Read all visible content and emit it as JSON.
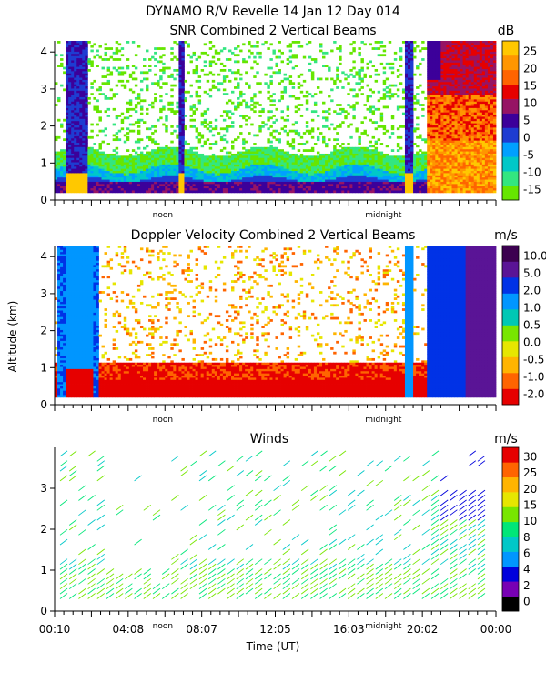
{
  "title_line1": "DYNAMO R/V Revelle  14 Jan 12 Day 014",
  "colors": {
    "dB": [
      "#66e600",
      "#33e680",
      "#00c8c8",
      "#00a0ff",
      "#1e3cd2",
      "#3c009a",
      "#961464",
      "#e60000",
      "#ff6400",
      "#ff9600",
      "#ffc800"
    ],
    "velocity": [
      "#e60000",
      "#ff6400",
      "#ffb400",
      "#e6e600",
      "#78e600",
      "#00c8b4",
      "#0096ff",
      "#0032e6",
      "#5a1496",
      "#3c0050"
    ],
    "winds": [
      "#000000",
      "#7800b4",
      "#0000dc",
      "#0096ff",
      "#00c8c8",
      "#00e678",
      "#78e600",
      "#e6e600",
      "#ffb400",
      "#ff6400",
      "#e60000"
    ]
  },
  "chart_data": [
    {
      "type": "heatmap",
      "title": "SNR Combined 2 Vertical Beams",
      "ylabel": "",
      "ylim": [
        0,
        4.3
      ],
      "yticks": [
        0,
        1,
        2,
        3,
        4
      ],
      "x_markers": [
        "noon",
        "midnight"
      ],
      "colorbar_unit": "dB",
      "colorbar_ticks": [
        "-15",
        "-10",
        "-5",
        "0",
        "5",
        "10",
        "15",
        "20",
        "25"
      ],
      "colorbar_range": [
        -18,
        30
      ]
    },
    {
      "type": "heatmap",
      "title": "Doppler Velocity Combined 2 Vertical Beams",
      "ylabel": "Altitude (km)",
      "ylim": [
        0,
        4.3
      ],
      "yticks": [
        0,
        1,
        2,
        3,
        4
      ],
      "x_markers": [
        "noon",
        "midnight"
      ],
      "colorbar_unit": "m/s",
      "colorbar_ticks": [
        "-2.0",
        "-1.0",
        "-0.5",
        "0.0",
        "0.5",
        "1.0",
        "2.0",
        "5.0",
        "10.0"
      ]
    },
    {
      "type": "scatter",
      "title": "Winds",
      "ylabel": "",
      "xlabel": "Time (UT)",
      "ylim": [
        0,
        4.0
      ],
      "yticks": [
        0,
        1,
        2,
        3
      ],
      "xticks": [
        "00:10",
        "04:08",
        "08:07",
        "12:05",
        "16:03",
        "20:02",
        "00:00"
      ],
      "x_markers": [
        "noon",
        "midnight"
      ],
      "colorbar_unit": "m/s",
      "colorbar_ticks": [
        "0",
        "2",
        "4",
        "6",
        "8",
        "10",
        "15",
        "20",
        "25",
        "30"
      ]
    }
  ]
}
